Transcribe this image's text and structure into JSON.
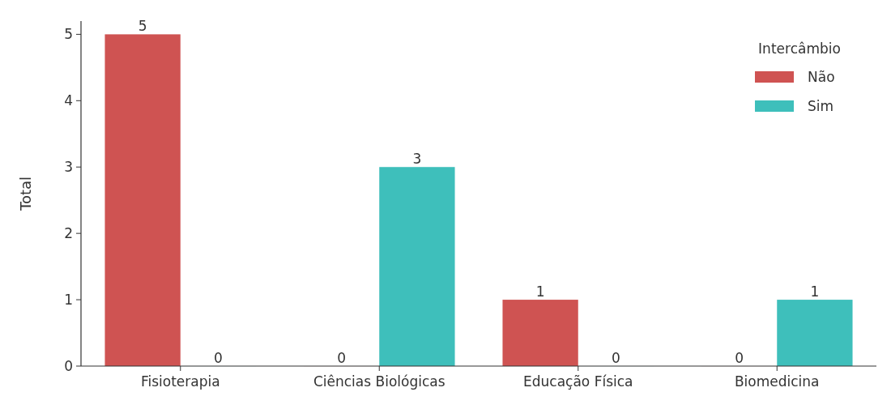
{
  "chart_data": {
    "type": "bar",
    "ylabel": "Total",
    "legend_title": "Intercâmbio",
    "categories": [
      "Fisioterapia",
      "Ciências Biológicas",
      "Educação Física",
      "Biomedicina"
    ],
    "series": [
      {
        "name": "Não",
        "color": "#cf5352",
        "values": [
          5,
          0,
          1,
          0
        ]
      },
      {
        "name": "Sim",
        "color": "#3ebfbb",
        "values": [
          0,
          3,
          0,
          1
        ]
      }
    ],
    "ylim": [
      0,
      5.2
    ],
    "yticks": [
      0,
      1,
      2,
      3,
      4,
      5
    ],
    "data_labels": true,
    "legend": "top right",
    "grid": false
  }
}
